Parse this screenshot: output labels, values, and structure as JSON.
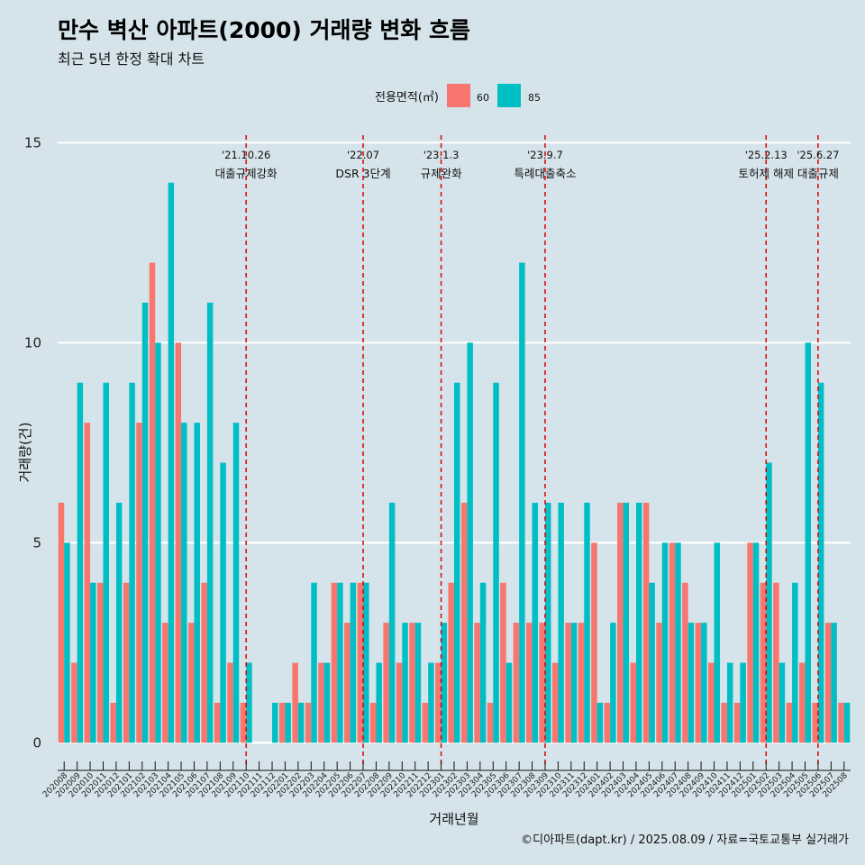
{
  "title": "만수 벽산 아파트(2000) 거래량 변화 흐름",
  "subtitle": "최근 5년 한정 확대 차트",
  "caption": "©디아파트(dapt.kr) / 2025.08.09 / 자료=국토교통부 실거래가",
  "colors": {
    "s60": "#f8766d",
    "s85": "#00bfc4",
    "vline": "#e00000",
    "grid": "#ffffff"
  },
  "chart_data": {
    "type": "bar",
    "xlabel": "거래년월",
    "ylabel": "거래량(건)",
    "ylim": [
      -0.6,
      15.3
    ],
    "yticks": [
      0,
      5,
      10,
      15
    ],
    "legend": {
      "title": "전용면적(㎡)",
      "position": "top"
    },
    "categories": [
      "202008",
      "202009",
      "202010",
      "202011",
      "202012",
      "202101",
      "202102",
      "202103",
      "202104",
      "202105",
      "202106",
      "202107",
      "202108",
      "202109",
      "202110",
      "202111",
      "202112",
      "202201",
      "202202",
      "202203",
      "202204",
      "202205",
      "202206",
      "202207",
      "202208",
      "202209",
      "202210",
      "202211",
      "202212",
      "202301",
      "202302",
      "202303",
      "202304",
      "202305",
      "202306",
      "202307",
      "202308",
      "202309",
      "202310",
      "202311",
      "202312",
      "202401",
      "202402",
      "202403",
      "202404",
      "202405",
      "202406",
      "202407",
      "202408",
      "202409",
      "202410",
      "202411",
      "202412",
      "202501",
      "202502",
      "202503",
      "202504",
      "202505",
      "202506",
      "202507",
      "202508"
    ],
    "series": [
      {
        "name": "60",
        "values": [
          6,
          2,
          8,
          4,
          1,
          4,
          8,
          12,
          3,
          10,
          3,
          4,
          1,
          2,
          1,
          0,
          0,
          1,
          2,
          1,
          2,
          4,
          3,
          4,
          1,
          3,
          2,
          3,
          1,
          2,
          4,
          6,
          3,
          1,
          4,
          3,
          3,
          3,
          2,
          3,
          3,
          5,
          1,
          6,
          2,
          6,
          3,
          5,
          4,
          3,
          2,
          1,
          1,
          5,
          4,
          4,
          1,
          2,
          1,
          3,
          1
        ]
      },
      {
        "name": "85",
        "values": [
          5,
          9,
          4,
          9,
          6,
          9,
          11,
          10,
          14,
          8,
          8,
          11,
          7,
          8,
          2,
          0,
          1,
          1,
          1,
          4,
          2,
          4,
          4,
          4,
          2,
          6,
          3,
          3,
          2,
          3,
          9,
          10,
          4,
          9,
          2,
          12,
          6,
          6,
          6,
          3,
          6,
          1,
          3,
          6,
          6,
          4,
          5,
          5,
          3,
          3,
          5,
          2,
          2,
          5,
          7,
          2,
          4,
          10,
          9,
          3,
          1
        ]
      }
    ],
    "annotations": [
      {
        "date": "'21.10.26",
        "label": "대출규제강화",
        "index": 14
      },
      {
        "date": "'22.07",
        "label": "DSR 3단계",
        "index": 23
      },
      {
        "date": "'23.1.3",
        "label": "규제완화",
        "index": 29
      },
      {
        "date": "'23.9.7",
        "label": "특례대출축소",
        "index": 37
      },
      {
        "date": "'25.2.13",
        "label": "토허제 해제",
        "index": 54
      },
      {
        "date": "'25.6.27",
        "label": "대출규제",
        "index": 58
      }
    ]
  }
}
